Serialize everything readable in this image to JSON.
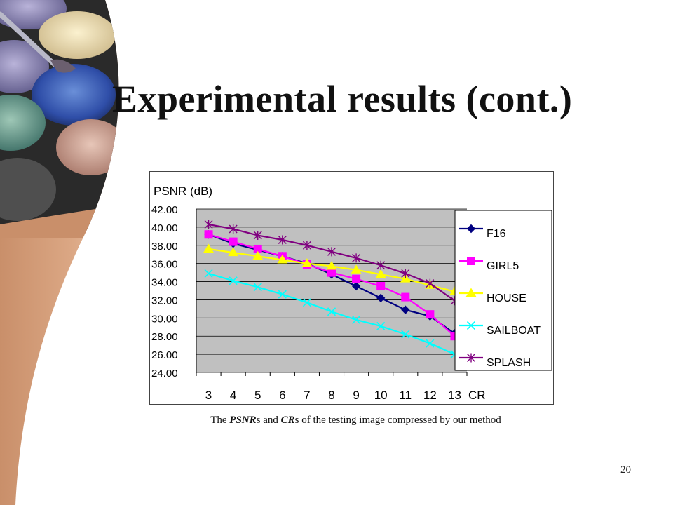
{
  "slide": {
    "title": "Experimental results (cont.)",
    "caption_prefix": "The ",
    "caption_em1": "PSNR",
    "caption_mid": "s and ",
    "caption_em2": "CR",
    "caption_suffix": "s of the testing image compressed by our method",
    "page_number": "20"
  },
  "chart_data": {
    "type": "line",
    "title": "PSNR (dB)",
    "xlabel": "CR",
    "ylabel": "PSNR (dB)",
    "categories": [
      "3",
      "4",
      "5",
      "6",
      "7",
      "8",
      "9",
      "10",
      "11",
      "12",
      "13"
    ],
    "ylim": [
      24,
      42
    ],
    "yticks": [
      "42.00",
      "40.00",
      "38.00",
      "36.00",
      "34.00",
      "32.00",
      "30.00",
      "28.00",
      "26.00",
      "24.00"
    ],
    "grid": true,
    "legend_position": "right",
    "plot_background": "#c0c0c0",
    "series": [
      {
        "name": "F16",
        "marker": "diamond",
        "color": "#000080",
        "values": [
          39.2,
          38.2,
          37.5,
          36.8,
          36.0,
          34.8,
          33.5,
          32.2,
          30.9,
          30.2,
          28.3
        ]
      },
      {
        "name": "GIRL5",
        "marker": "square",
        "color": "#ff00ff",
        "values": [
          39.2,
          38.4,
          37.6,
          36.8,
          35.9,
          35.0,
          34.3,
          33.5,
          32.3,
          30.4,
          28.0
        ]
      },
      {
        "name": "HOUSE",
        "marker": "triangle",
        "color": "#ffff00",
        "values": [
          37.6,
          37.2,
          36.8,
          36.4,
          36.0,
          35.7,
          35.3,
          34.8,
          34.3,
          33.6,
          32.9
        ]
      },
      {
        "name": "SAILBOAT",
        "marker": "x",
        "color": "#00ffff",
        "values": [
          34.9,
          34.1,
          33.4,
          32.6,
          31.7,
          30.7,
          29.8,
          29.1,
          28.2,
          27.2,
          26.0
        ]
      },
      {
        "name": "SPLASH",
        "marker": "star",
        "color": "#800080",
        "values": [
          40.3,
          39.8,
          39.1,
          38.6,
          38.0,
          37.3,
          36.6,
          35.8,
          34.9,
          33.8,
          31.9
        ]
      }
    ]
  }
}
